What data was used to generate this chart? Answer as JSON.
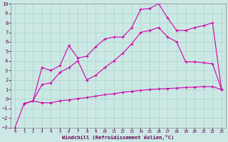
{
  "title": "",
  "xlabel": "Windchill (Refroidissement éolien,°C)",
  "xlim": [
    -0.5,
    23.5
  ],
  "ylim": [
    -3,
    10
  ],
  "xticks": [
    0,
    1,
    2,
    3,
    4,
    5,
    6,
    7,
    8,
    9,
    10,
    11,
    12,
    13,
    14,
    15,
    16,
    17,
    18,
    19,
    20,
    21,
    22,
    23
  ],
  "yticks": [
    -3,
    -2,
    -1,
    0,
    1,
    2,
    3,
    4,
    5,
    6,
    7,
    8,
    9,
    10
  ],
  "bg_color": "#cce8e4",
  "grid_color": "#aad4cc",
  "line_color": "#cc00aa",
  "line1_x": [
    0,
    1,
    2,
    3,
    4,
    5,
    6,
    7,
    8,
    9,
    10,
    11,
    12,
    13,
    14,
    15,
    16,
    17,
    18,
    19,
    20,
    21,
    22,
    23
  ],
  "line1_y": [
    -3.0,
    -0.5,
    -0.2,
    -0.4,
    -0.4,
    -0.2,
    -0.1,
    0.05,
    0.15,
    0.3,
    0.45,
    0.55,
    0.7,
    0.8,
    0.9,
    1.0,
    1.05,
    1.1,
    1.15,
    1.2,
    1.25,
    1.3,
    1.3,
    1.0
  ],
  "line2_x": [
    1,
    2,
    3,
    4,
    5,
    6,
    7,
    8,
    9,
    10,
    11,
    12,
    13,
    14,
    15,
    16,
    17,
    18,
    19,
    20,
    21,
    22,
    23
  ],
  "line2_y": [
    -0.5,
    -0.2,
    3.3,
    3.0,
    3.5,
    5.6,
    4.3,
    4.5,
    5.5,
    6.3,
    6.5,
    6.5,
    7.5,
    9.4,
    9.5,
    10.0,
    8.5,
    7.2,
    7.2,
    7.5,
    7.7,
    8.0,
    1.0
  ],
  "line3_x": [
    1,
    2,
    3,
    4,
    5,
    6,
    7,
    8,
    9,
    10,
    11,
    12,
    13,
    14,
    15,
    16,
    17,
    18,
    19,
    20,
    21,
    22,
    23
  ],
  "line3_y": [
    -0.5,
    -0.2,
    1.5,
    1.7,
    2.8,
    3.3,
    4.0,
    2.0,
    2.5,
    3.3,
    4.0,
    4.8,
    5.8,
    7.0,
    7.2,
    7.5,
    6.5,
    6.0,
    3.9,
    3.9,
    3.8,
    3.7,
    1.0
  ]
}
